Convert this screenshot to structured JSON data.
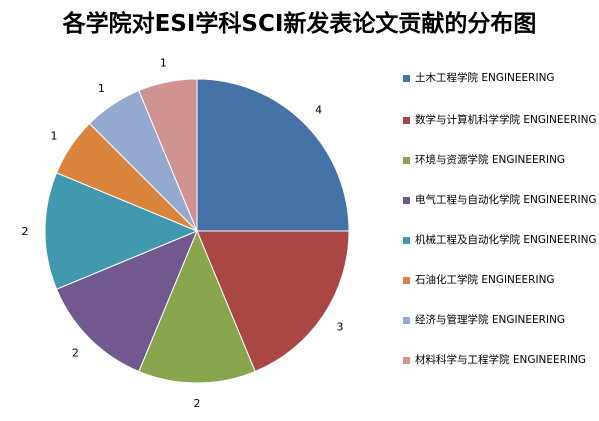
{
  "chart_data": {
    "type": "pie",
    "title": "各学院对ESI学科SCI新发表论文贡献的分布图",
    "categories": [
      "土木工程学院 ENGINEERING",
      "数学与计算机科学学院 ENGINEERING",
      "环境与资源学院 ENGINEERING",
      "电气工程与自动化学院 ENGINEERING",
      "机械工程及自动化学院 ENGINEERING",
      "石油化工学院 ENGINEERING",
      "经济与管理学院 ENGINEERING",
      "材料科学与工程学院 ENGINEERING"
    ],
    "values": [
      4,
      3,
      2,
      2,
      2,
      1,
      1,
      1
    ],
    "labels": [
      "4",
      "3",
      "2",
      "2",
      "2",
      "1",
      "1",
      "1"
    ],
    "colors": [
      "#4572A7",
      "#AA4643",
      "#89A54E",
      "#71588F",
      "#4198AF",
      "#DB843D",
      "#93A9CF",
      "#D19392"
    ],
    "legend_position": "right"
  }
}
